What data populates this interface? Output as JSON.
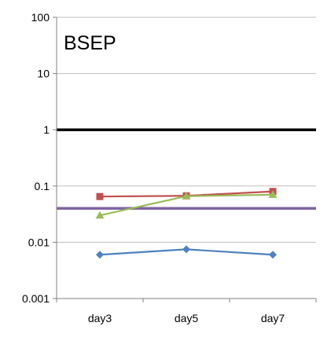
{
  "chart_data": {
    "type": "line",
    "title": "BSEP",
    "xlabel": "",
    "ylabel": "",
    "y_scale": "log",
    "ylim": [
      0.001,
      100
    ],
    "y_ticks": [
      {
        "value": 100,
        "label": "100"
      },
      {
        "value": 10,
        "label": "10"
      },
      {
        "value": 1,
        "label": "1"
      },
      {
        "value": 0.1,
        "label": "0.1"
      },
      {
        "value": 0.01,
        "label": "0.01"
      },
      {
        "value": 0.001,
        "label": "0.001"
      }
    ],
    "grid": "horizontal",
    "legend": "none",
    "categories": [
      "day3",
      "day5",
      "day7"
    ],
    "series": [
      {
        "color": "#c0504d",
        "marker": "square",
        "values": [
          0.065,
          0.067,
          0.08
        ]
      },
      {
        "color": "#9bbb59",
        "marker": "triangle",
        "values": [
          0.03,
          0.066,
          0.07
        ]
      },
      {
        "color": "#4f81bd",
        "marker": "diamond",
        "values": [
          0.006,
          0.0075,
          0.006
        ]
      }
    ],
    "reference_lines": [
      {
        "value": 1,
        "color": "#000000"
      },
      {
        "value": 0.04,
        "color": "#8064a2"
      }
    ]
  }
}
